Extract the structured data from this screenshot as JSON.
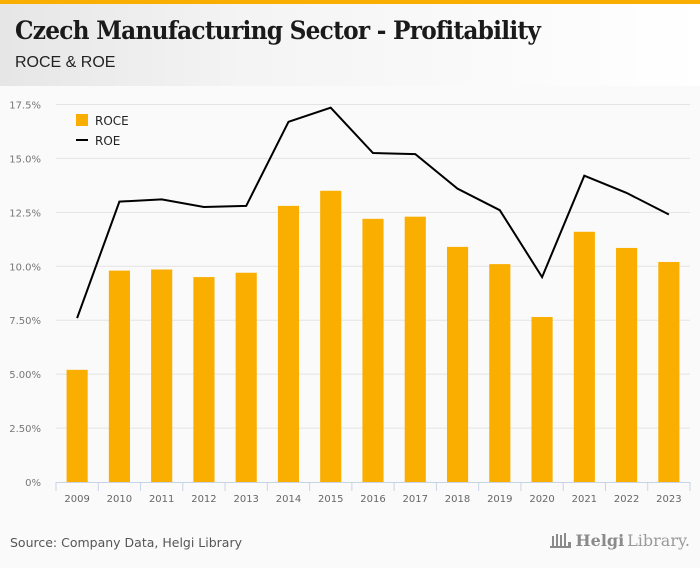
{
  "header": {
    "title": "Czech Manufacturing Sector - Profitability",
    "subtitle": "ROCE & ROE"
  },
  "footer": {
    "source": "Source: Company Data, Helgi Library",
    "logo_bold": "Helgi",
    "logo_light": "Library."
  },
  "colors": {
    "accent": "#f9ae00",
    "roce": "#f9ae00",
    "roe": "#000000",
    "grid": "#e3e3e3",
    "axis": "#c8d4e6"
  },
  "chart_data": {
    "type": "bar",
    "title": "Czech Manufacturing Sector - Profitability",
    "subtitle": "ROCE & ROE",
    "xlabel": "",
    "ylabel": "",
    "categories": [
      "2009",
      "2010",
      "2011",
      "2012",
      "2013",
      "2014",
      "2015",
      "2016",
      "2017",
      "2018",
      "2019",
      "2020",
      "2021",
      "2022",
      "2023"
    ],
    "series": [
      {
        "name": "ROCE",
        "type": "bar",
        "values": [
          5.2,
          9.8,
          9.85,
          9.5,
          9.7,
          12.8,
          13.5,
          12.2,
          12.3,
          10.9,
          10.1,
          7.65,
          11.6,
          10.85,
          10.2
        ]
      },
      {
        "name": "ROE",
        "type": "line",
        "values": [
          7.6,
          13.0,
          13.1,
          12.75,
          12.8,
          16.7,
          17.35,
          15.25,
          15.2,
          13.6,
          12.6,
          9.5,
          14.2,
          13.4,
          12.4
        ]
      }
    ],
    "ylim": [
      0,
      17.5
    ],
    "yticks": [
      0,
      2.5,
      5,
      7.5,
      10,
      12.5,
      15,
      17.5
    ],
    "ytick_labels": [
      "0%",
      "2.50%",
      "5.00%",
      "7.50%",
      "10.0%",
      "12.5%",
      "15.0%",
      "17.5%"
    ],
    "grid": true,
    "legend": {
      "position": "top-left",
      "entries": [
        "ROCE",
        "ROE"
      ]
    },
    "unit": "%"
  }
}
